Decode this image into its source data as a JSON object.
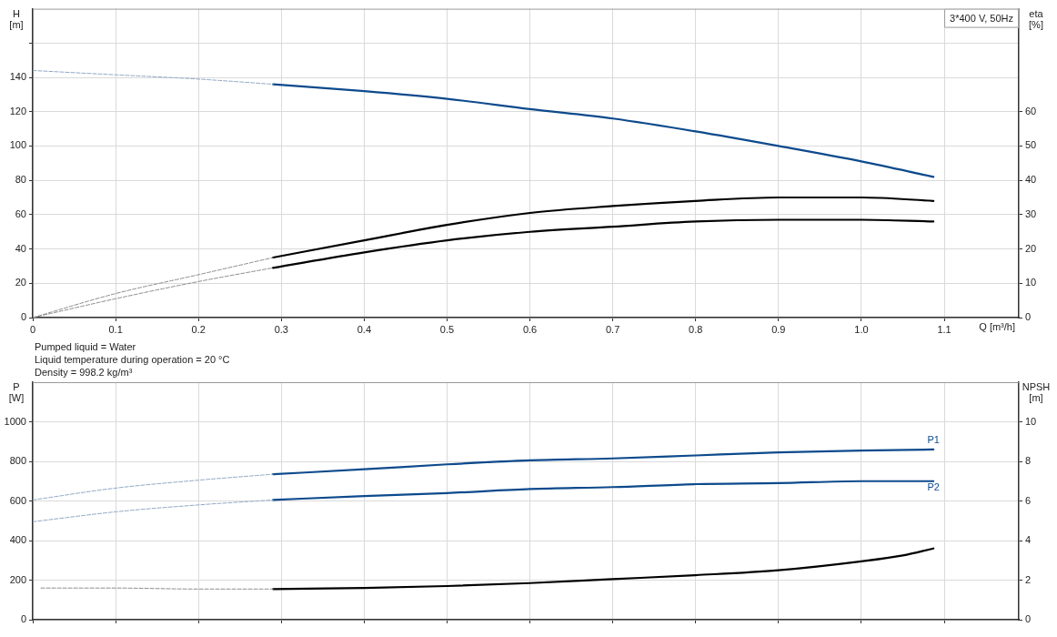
{
  "chart_data": [
    {
      "type": "line",
      "xlabel": "Q [m³/h]",
      "ylabel": "H [m]",
      "y2label": "eta [%]",
      "annotations": [
        "3*400 V, 50Hz"
      ],
      "xlim": [
        0,
        1.19
      ],
      "xticks": [
        0,
        0.1,
        0.2,
        0.3,
        0.4,
        0.5,
        0.6,
        0.7,
        0.8,
        0.9,
        {
          "value": 1,
          "label": "1.0"
        },
        1.1
      ],
      "ylim": [
        0,
        180
      ],
      "yticks": [
        0,
        20,
        40,
        60,
        80,
        100,
        120,
        140,
        {
          "value": 160,
          "label": null
        }
      ],
      "y2lim": [
        0,
        90
      ],
      "y2ticks": [
        0,
        10,
        20,
        30,
        40,
        50,
        60
      ],
      "grid": true,
      "legend": false,
      "marker": "none",
      "series": [
        {
          "color": "#8fa6c4",
          "line_style": "dashed",
          "x": [
            0,
            0.1,
            0.2,
            0.29
          ],
          "values": [
            144,
            141.5,
            139,
            136
          ]
        },
        {
          "color": "#0d4a8c",
          "line_style": "solid",
          "x": [
            0.29,
            0.4,
            0.5,
            0.6,
            0.7,
            0.8,
            0.9,
            1.0,
            1.087
          ],
          "values": [
            136,
            132,
            127.5,
            121.5,
            116,
            108.5,
            100,
            91,
            82
          ]
        },
        {
          "color": "#8c8c8c",
          "line_style": "dashed",
          "axis": "y2",
          "x": [
            0,
            0.1,
            0.2,
            0.29
          ],
          "values": [
            0,
            7,
            12.5,
            17.5
          ]
        },
        {
          "color": "#000000",
          "line_style": "solid",
          "axis": "y2",
          "x": [
            0.29,
            0.4,
            0.5,
            0.6,
            0.7,
            0.8,
            0.9,
            0.95,
            1.0,
            1.087
          ],
          "values": [
            17.5,
            22.5,
            27,
            30.5,
            32.5,
            34,
            35,
            35,
            35,
            34
          ]
        },
        {
          "color": "#8c8c8c",
          "line_style": "dashed",
          "axis": "y2",
          "x": [
            0,
            0.1,
            0.2,
            0.29
          ],
          "values": [
            0,
            5.5,
            10.5,
            14.5
          ]
        },
        {
          "color": "#000000",
          "line_style": "solid",
          "axis": "y2",
          "x": [
            0.29,
            0.4,
            0.5,
            0.6,
            0.7,
            0.8,
            0.9,
            0.95,
            1.0,
            1.087
          ],
          "values": [
            14.5,
            19,
            22.5,
            25,
            26.5,
            28,
            28.5,
            28.5,
            28.5,
            28
          ]
        }
      ]
    },
    {
      "type": "line",
      "ylabel": "P [W]",
      "y2label": "NPSH [m]",
      "annotations": [
        "Pumped liquid = Water",
        "Liquid temperature during operation = 20 °C",
        "Density = 998.2 kg/m³"
      ],
      "xlim": [
        0,
        1.19
      ],
      "xticks": [
        0,
        0.1,
        0.2,
        0.3,
        0.4,
        0.5,
        0.6,
        0.7,
        0.8,
        0.9,
        1,
        1.1
      ],
      "tick_labels": "y",
      "ylim": [
        0,
        1200
      ],
      "yticks": [
        0,
        200,
        400,
        600,
        800,
        1000
      ],
      "y2lim": [
        0,
        12
      ],
      "y2ticks": [
        0,
        2,
        4,
        6,
        8,
        10
      ],
      "grid": true,
      "legend": false,
      "marker": "none",
      "series": [
        {
          "color": "#8fa6c4",
          "line_style": "dashed",
          "x": [
            0,
            0.1,
            0.2,
            0.29
          ],
          "values": [
            605,
            665,
            705,
            735
          ]
        },
        {
          "name": "P1",
          "color": "#0d4a8c",
          "line_style": "solid",
          "x": [
            0.29,
            0.4,
            0.5,
            0.6,
            0.7,
            0.8,
            0.9,
            1.0,
            1.087
          ],
          "values": [
            735,
            760,
            785,
            805,
            815,
            830,
            845,
            855,
            860
          ]
        },
        {
          "color": "#8fa6c4",
          "line_style": "dashed",
          "x": [
            0,
            0.1,
            0.2,
            0.29
          ],
          "values": [
            495,
            545,
            580,
            605
          ]
        },
        {
          "name": "P2",
          "color": "#0d4a8c",
          "line_style": "solid",
          "x": [
            0.29,
            0.4,
            0.5,
            0.6,
            0.7,
            0.8,
            0.9,
            1.0,
            1.087
          ],
          "values": [
            605,
            625,
            640,
            660,
            670,
            685,
            690,
            700,
            700
          ]
        },
        {
          "color": "#8c8c8c",
          "line_style": "dashed",
          "axis": "y2",
          "x": [
            0.01,
            0.1,
            0.2,
            0.29
          ],
          "values": [
            1.6,
            1.6,
            1.55,
            1.55
          ]
        },
        {
          "color": "#000000",
          "line_style": "solid",
          "axis": "y2",
          "x": [
            0.29,
            0.4,
            0.5,
            0.6,
            0.7,
            0.8,
            0.9,
            1.0,
            1.05,
            1.087
          ],
          "values": [
            1.55,
            1.6,
            1.7,
            1.85,
            2.05,
            2.25,
            2.5,
            2.95,
            3.25,
            3.6
          ]
        }
      ]
    }
  ]
}
